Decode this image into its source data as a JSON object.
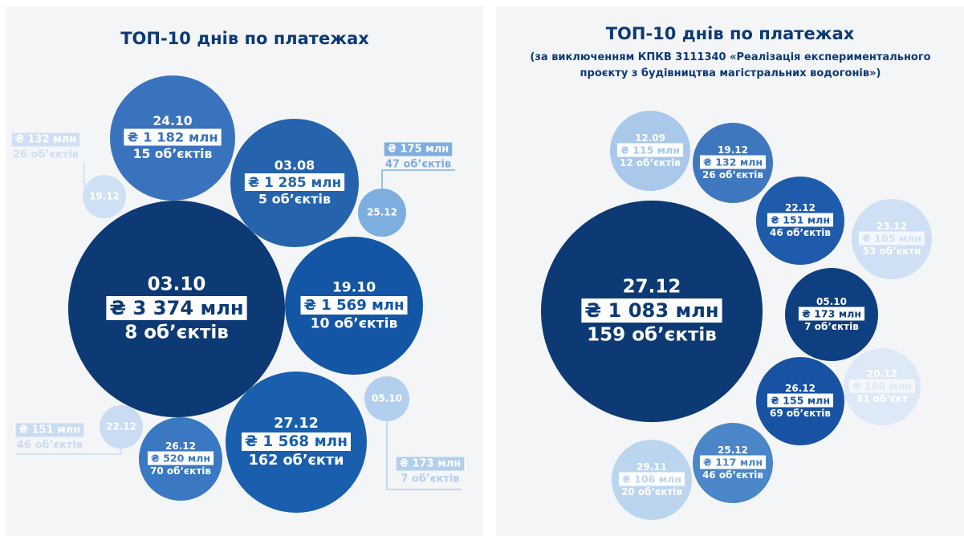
{
  "chart_data": [
    {
      "type": "packed-bubble",
      "title": "ТОП-10 днів по платежах",
      "categories": [
        "24.10",
        "03.08",
        "03.10",
        "19.10",
        "27.12",
        "26.12",
        "22.12",
        "05.10",
        "19.12",
        "25.12"
      ],
      "values": [
        1182,
        1285,
        3374,
        1569,
        1568,
        520,
        151,
        173,
        132,
        175
      ],
      "value_labels": [
        "₴ 1 182 млн",
        "₴ 1 285 млн",
        "₴ 3 374 млн",
        "₴ 1 569 млн",
        "₴ 1 568 млн",
        "₴ 520 млн",
        "₴ 151 млн",
        "₴ 173 млн",
        "₴ 132 млн",
        "₴ 175 млн"
      ],
      "objects": [
        "15 об’єктів",
        "5 об’єктів",
        "8 об’єктів",
        "10 об’єктів",
        "162 об’єкти",
        "70 об’єктів",
        "46 об’єктів",
        "7 об’єктів",
        "26 об’єктів",
        "47 об’єктів"
      ],
      "colors": [
        "#3a73bd",
        "#2563ad",
        "#0d3a75",
        "#1256a5",
        "#1a5fae",
        "#3a78c2",
        "#c9dcf2",
        "#b3cfee",
        "#cfe0f4",
        "#7eaee0"
      ]
    },
    {
      "type": "packed-bubble",
      "title": "ТОП-10 днів по платежах",
      "subtitle": "(за виключенням КПКВ 3111340 «Реалізація експериментального проєкту з будівництва магістральних водогонів»)",
      "categories": [
        "27.12",
        "12.09",
        "19.12",
        "22.12",
        "23.12",
        "05.10",
        "20.12",
        "26.12",
        "25.12",
        "29.11"
      ],
      "values": [
        1083,
        115,
        132,
        151,
        105,
        173,
        100,
        155,
        117,
        106
      ],
      "value_labels": [
        "₴ 1 083 млн",
        "₴ 115 млн",
        "₴ 132 млн",
        "₴ 151 млн",
        "₴ 105 млн",
        "₴ 173 млн",
        "₴ 100 млн",
        "₴ 155 млн",
        "₴ 117 млн",
        "₴ 106 млн"
      ],
      "objects": [
        "159 об’єктів",
        "12 об’єктів",
        "26 об’єктів",
        "46 об’єктів",
        "53 об’єкти",
        "7 об’єктів",
        "31 об’єкт",
        "69 об’єктів",
        "46 об’єктів",
        "20 об’єктів"
      ],
      "colors": [
        "#0d3a75",
        "#a9c8ea",
        "#3e77be",
        "#1e5bab",
        "#cfe0f4",
        "#0e3f80",
        "#dde9f6",
        "#1853a3",
        "#4a86c8",
        "#bcd5ef"
      ]
    }
  ]
}
